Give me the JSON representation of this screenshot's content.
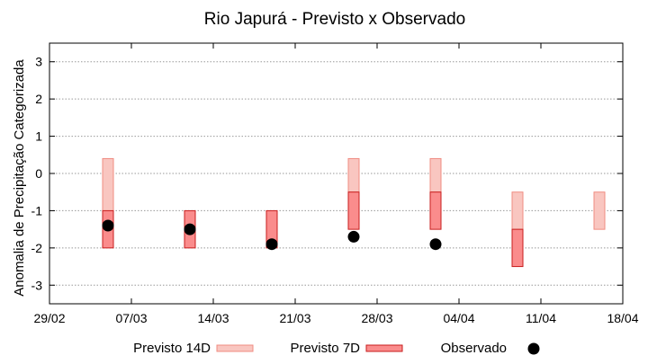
{
  "chart_data": {
    "type": "range-bar",
    "title": "Rio Japurá - Previsto x Observado",
    "xlabel": "",
    "ylabel": "Anomalia de Precipitação Categorizada",
    "x_ticks": [
      "29/02",
      "07/03",
      "14/03",
      "21/03",
      "28/03",
      "04/04",
      "11/04",
      "18/04"
    ],
    "x_tick_days": [
      0,
      7,
      14,
      21,
      28,
      35,
      42,
      49
    ],
    "x_range_days": [
      0,
      49
    ],
    "ylim": [
      -3.5,
      3.5
    ],
    "y_ticks": [
      -3,
      -2,
      -1,
      0,
      1,
      2,
      3
    ],
    "grid": true,
    "legend_position": "bottom",
    "colors": {
      "previsto14": "#f9c6c0",
      "previsto14_edge": "#f08c82",
      "previsto7": "#fa8c8c",
      "previsto7_edge": "#c81e1e",
      "observado": "#000000",
      "grid": "#999999"
    },
    "series": [
      {
        "name": "Previsto 14D",
        "key": "previsto14",
        "points": [
          {
            "day": 5,
            "low": -1.0,
            "high": 0.4
          },
          {
            "day": 26,
            "low": -0.5,
            "high": 0.4
          },
          {
            "day": 33,
            "low": -0.5,
            "high": 0.4
          },
          {
            "day": 40,
            "low": -1.5,
            "high": -0.5
          },
          {
            "day": 47,
            "low": -1.5,
            "high": -0.5
          }
        ]
      },
      {
        "name": "Previsto 7D",
        "key": "previsto7",
        "points": [
          {
            "day": 5,
            "low": -2.0,
            "high": -1.0
          },
          {
            "day": 12,
            "low": -2.0,
            "high": -1.0
          },
          {
            "day": 19,
            "low": -2.0,
            "high": -1.0
          },
          {
            "day": 26,
            "low": -1.5,
            "high": -0.5
          },
          {
            "day": 33,
            "low": -1.5,
            "high": -0.5
          },
          {
            "day": 40,
            "low": -2.5,
            "high": -1.5
          }
        ]
      },
      {
        "name": "Observado",
        "key": "observado",
        "points": [
          {
            "day": 5,
            "value": -1.4
          },
          {
            "day": 12,
            "value": -1.5
          },
          {
            "day": 19,
            "value": -1.9
          },
          {
            "day": 26,
            "value": -1.7
          },
          {
            "day": 33,
            "value": -1.9
          }
        ]
      }
    ]
  }
}
